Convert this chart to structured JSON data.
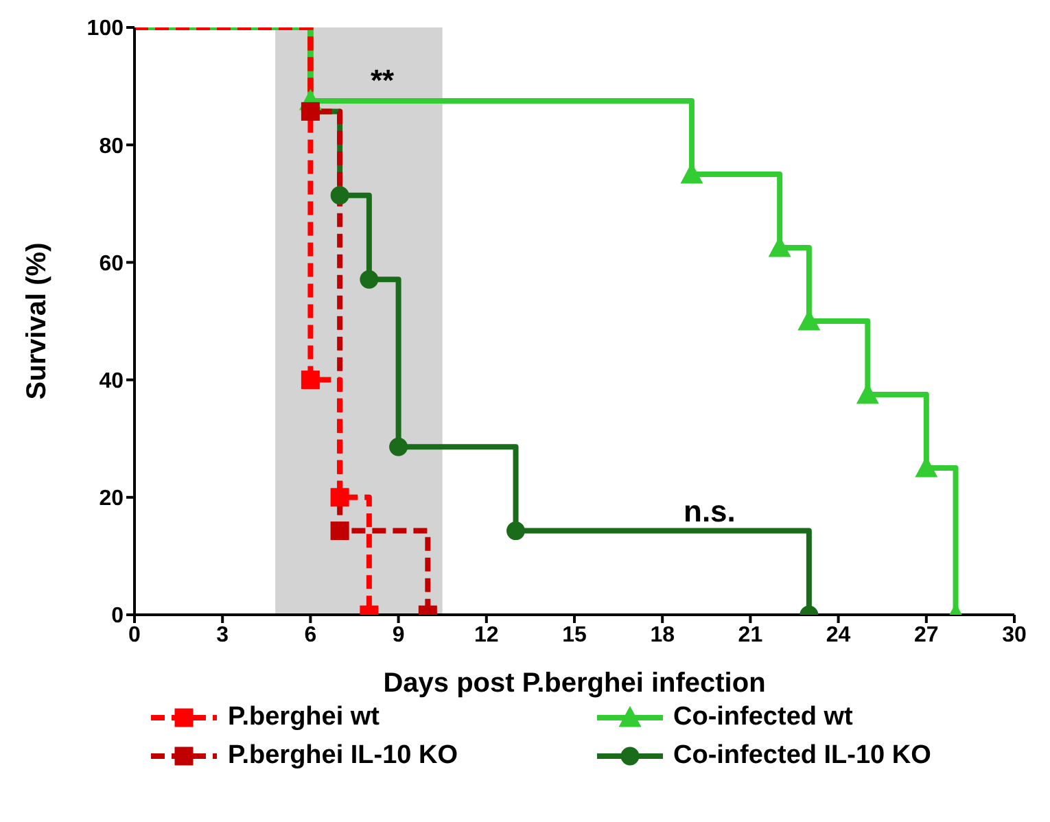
{
  "chart_data": {
    "type": "step",
    "xlabel": "Days post P.berghei infection",
    "ylabel": "Survival (%)",
    "xlim": [
      0,
      30
    ],
    "xticks": [
      0,
      3,
      6,
      9,
      12,
      15,
      18,
      21,
      24,
      27,
      30
    ],
    "ylim": [
      0,
      100
    ],
    "yticks": [
      0,
      20,
      40,
      60,
      80,
      100
    ],
    "legend": "bottom",
    "series": [
      {
        "name": "P.berghei wt",
        "color": "#ff0000",
        "x": [
          0,
          6,
          7,
          8
        ],
        "values": [
          100,
          40,
          20,
          0
        ],
        "marker": "square",
        "line_style": "dashed"
      },
      {
        "name": "P.berghei IL-10 KO",
        "color": "#c00000",
        "x": [
          0,
          6,
          7,
          10
        ],
        "values": [
          100,
          85.7,
          14.3,
          0
        ],
        "marker": "square",
        "line_style": "dashed"
      },
      {
        "name": "Co-infected wt",
        "color": "#33cc33",
        "x": [
          0,
          6,
          19,
          22,
          23,
          25,
          27,
          28
        ],
        "values": [
          100,
          87.5,
          75,
          62.5,
          50,
          37.5,
          25,
          0
        ],
        "marker": "triangle",
        "line_style": "solid"
      },
      {
        "name": "Co-infected IL-10 KO",
        "color": "#1a6b1a",
        "x": [
          0,
          6,
          7,
          8,
          9,
          13,
          23
        ],
        "values": [
          100,
          85.7,
          71.4,
          57.1,
          28.6,
          14.3,
          0
        ],
        "marker": "circle",
        "line_style": "solid"
      }
    ],
    "bands": [
      {
        "axis": "x",
        "from": 4.8,
        "to": 10.5,
        "color": "#d3d3d3"
      }
    ],
    "annotations": [
      "**",
      "n.s."
    ]
  }
}
